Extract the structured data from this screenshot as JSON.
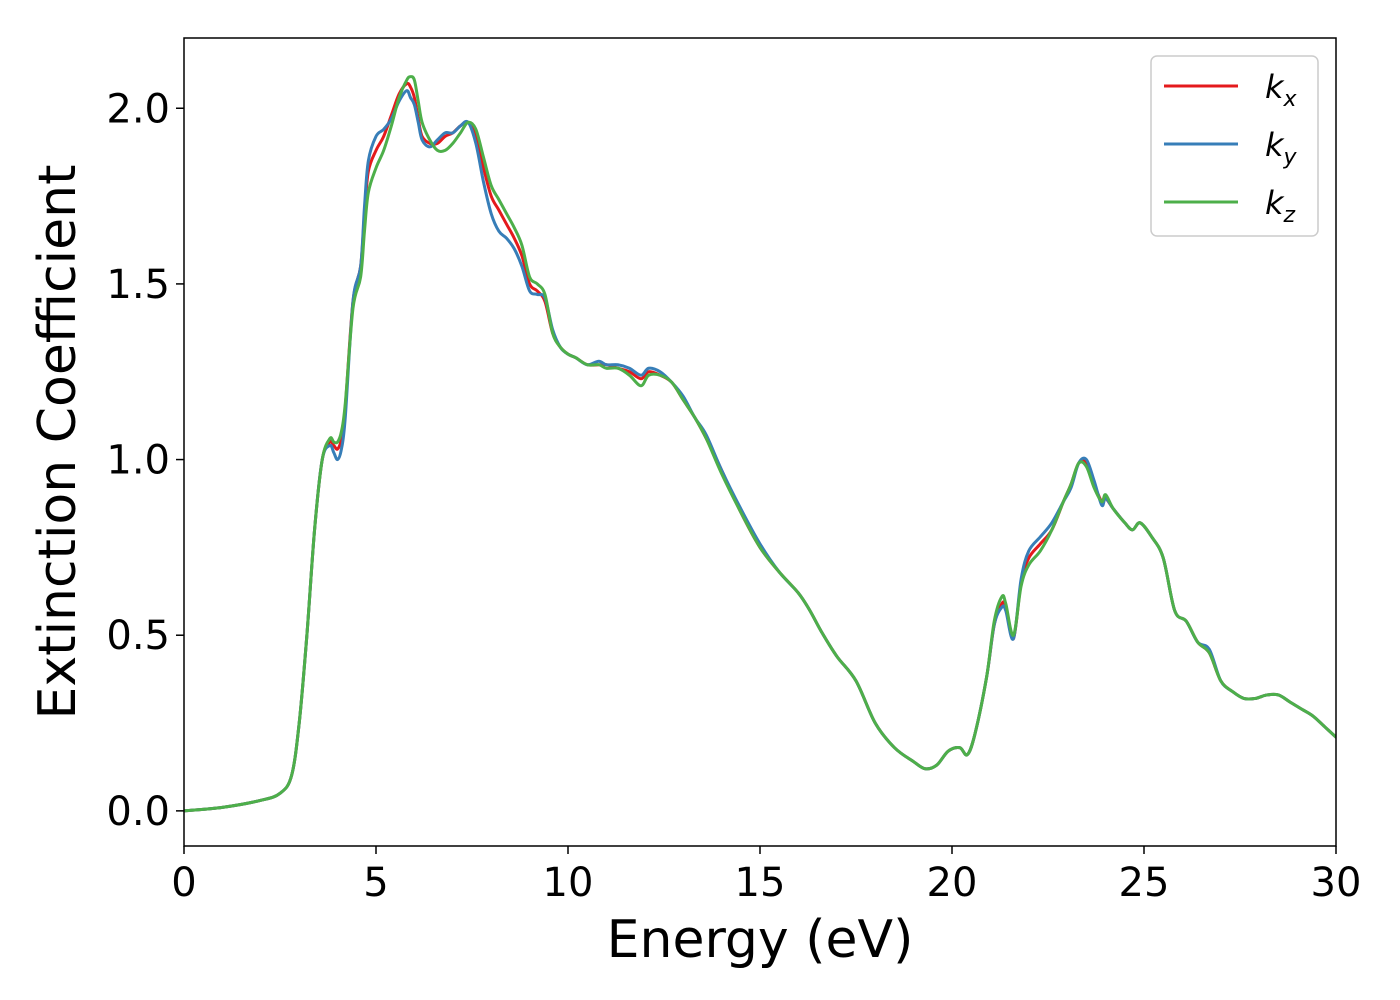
{
  "chart_data": {
    "type": "line",
    "title": "",
    "xlabel": "Energy (eV)",
    "ylabel": "Extinction Coefficient",
    "xlim": [
      0,
      30
    ],
    "ylim": [
      -0.1,
      2.2
    ],
    "xticks": [
      0,
      5,
      10,
      15,
      20,
      25,
      30
    ],
    "xtick_labels": [
      "0",
      "5",
      "10",
      "15",
      "20",
      "25",
      "30"
    ],
    "yticks": [
      0.0,
      0.5,
      1.0,
      1.5,
      2.0
    ],
    "ytick_labels": [
      "0.0",
      "0.5",
      "1.0",
      "1.5",
      "2.0"
    ],
    "grid": false,
    "legend_position": "top-right",
    "series": [
      {
        "name": "k",
        "subscript": "x",
        "color": "#e41a1c",
        "x": [
          0,
          1,
          2,
          2.5,
          2.8,
          3.0,
          3.2,
          3.4,
          3.6,
          3.8,
          3.9,
          4.0,
          4.1,
          4.2,
          4.4,
          4.6,
          4.7,
          4.8,
          5.0,
          5.2,
          5.4,
          5.6,
          5.8,
          5.9,
          6.0,
          6.1,
          6.2,
          6.4,
          6.6,
          6.8,
          7.0,
          7.2,
          7.4,
          7.6,
          7.8,
          8.0,
          8.2,
          8.4,
          8.6,
          8.8,
          9.0,
          9.2,
          9.4,
          9.6,
          9.8,
          10.0,
          10.2,
          10.5,
          10.8,
          11.0,
          11.3,
          11.6,
          11.9,
          12.1,
          12.4,
          12.7,
          13.0,
          13.3,
          13.6,
          14.0,
          14.5,
          15.0,
          15.5,
          16.0,
          16.3,
          16.6,
          17.0,
          17.5,
          18.0,
          18.5,
          19.0,
          19.3,
          19.6,
          19.9,
          20.2,
          20.4,
          20.6,
          20.9,
          21.1,
          21.3,
          21.4,
          21.6,
          21.8,
          22.0,
          22.3,
          22.6,
          22.9,
          23.1,
          23.3,
          23.5,
          23.7,
          23.9,
          24.0,
          24.2,
          24.5,
          24.7,
          24.9,
          25.2,
          25.5,
          25.8,
          26.1,
          26.4,
          26.7,
          27.0,
          27.3,
          27.6,
          27.9,
          28.2,
          28.5,
          28.8,
          29.1,
          29.4,
          29.7,
          30.0
        ],
        "values": [
          0.0,
          0.01,
          0.03,
          0.05,
          0.1,
          0.25,
          0.5,
          0.8,
          1.0,
          1.05,
          1.04,
          1.03,
          1.06,
          1.15,
          1.45,
          1.55,
          1.7,
          1.82,
          1.88,
          1.92,
          1.98,
          2.04,
          2.07,
          2.06,
          2.03,
          1.97,
          1.92,
          1.9,
          1.9,
          1.92,
          1.93,
          1.95,
          1.96,
          1.92,
          1.83,
          1.75,
          1.71,
          1.67,
          1.63,
          1.58,
          1.5,
          1.48,
          1.45,
          1.36,
          1.32,
          1.3,
          1.29,
          1.27,
          1.27,
          1.27,
          1.26,
          1.25,
          1.23,
          1.25,
          1.24,
          1.22,
          1.17,
          1.12,
          1.06,
          0.97,
          0.85,
          0.75,
          0.68,
          0.62,
          0.57,
          0.51,
          0.44,
          0.37,
          0.25,
          0.18,
          0.14,
          0.12,
          0.13,
          0.17,
          0.18,
          0.16,
          0.22,
          0.38,
          0.53,
          0.59,
          0.58,
          0.49,
          0.65,
          0.72,
          0.76,
          0.8,
          0.88,
          0.93,
          0.99,
          0.99,
          0.93,
          0.88,
          0.89,
          0.86,
          0.82,
          0.8,
          0.82,
          0.78,
          0.72,
          0.57,
          0.54,
          0.48,
          0.45,
          0.37,
          0.34,
          0.32,
          0.32,
          0.33,
          0.33,
          0.31,
          0.29,
          0.27,
          0.24,
          0.21
        ]
      },
      {
        "name": "k",
        "subscript": "y",
        "color": "#377eb8",
        "x": [
          0,
          1,
          2,
          2.5,
          2.8,
          3.0,
          3.2,
          3.4,
          3.6,
          3.8,
          3.9,
          4.0,
          4.1,
          4.2,
          4.4,
          4.6,
          4.7,
          4.8,
          5.0,
          5.2,
          5.4,
          5.6,
          5.8,
          5.9,
          6.0,
          6.1,
          6.2,
          6.4,
          6.6,
          6.8,
          7.0,
          7.2,
          7.4,
          7.6,
          7.8,
          8.0,
          8.2,
          8.4,
          8.6,
          8.8,
          9.0,
          9.2,
          9.4,
          9.6,
          9.8,
          10.0,
          10.2,
          10.5,
          10.8,
          11.0,
          11.3,
          11.6,
          11.9,
          12.1,
          12.4,
          12.7,
          13.0,
          13.3,
          13.6,
          14.0,
          14.5,
          15.0,
          15.5,
          16.0,
          16.3,
          16.6,
          17.0,
          17.5,
          18.0,
          18.5,
          19.0,
          19.3,
          19.6,
          19.9,
          20.2,
          20.4,
          20.6,
          20.9,
          21.1,
          21.3,
          21.4,
          21.6,
          21.8,
          22.0,
          22.3,
          22.6,
          22.9,
          23.1,
          23.3,
          23.5,
          23.7,
          23.9,
          24.0,
          24.2,
          24.5,
          24.7,
          24.9,
          25.2,
          25.5,
          25.8,
          26.1,
          26.4,
          26.7,
          27.0,
          27.3,
          27.6,
          27.9,
          28.2,
          28.5,
          28.8,
          29.1,
          29.4,
          29.7,
          30.0
        ],
        "values": [
          0.0,
          0.01,
          0.03,
          0.05,
          0.1,
          0.25,
          0.5,
          0.8,
          1.0,
          1.04,
          1.02,
          1.0,
          1.03,
          1.12,
          1.45,
          1.55,
          1.72,
          1.85,
          1.92,
          1.94,
          1.97,
          2.02,
          2.05,
          2.03,
          2.01,
          1.96,
          1.91,
          1.89,
          1.91,
          1.93,
          1.93,
          1.95,
          1.96,
          1.9,
          1.79,
          1.7,
          1.65,
          1.63,
          1.6,
          1.55,
          1.48,
          1.47,
          1.46,
          1.37,
          1.32,
          1.3,
          1.29,
          1.27,
          1.28,
          1.27,
          1.27,
          1.26,
          1.24,
          1.26,
          1.25,
          1.22,
          1.18,
          1.12,
          1.07,
          0.97,
          0.86,
          0.76,
          0.68,
          0.62,
          0.57,
          0.51,
          0.44,
          0.37,
          0.25,
          0.18,
          0.14,
          0.12,
          0.13,
          0.17,
          0.18,
          0.16,
          0.22,
          0.38,
          0.53,
          0.58,
          0.57,
          0.49,
          0.66,
          0.74,
          0.78,
          0.82,
          0.88,
          0.92,
          0.99,
          1.0,
          0.94,
          0.87,
          0.89,
          0.86,
          0.82,
          0.8,
          0.82,
          0.78,
          0.72,
          0.57,
          0.54,
          0.48,
          0.46,
          0.37,
          0.34,
          0.32,
          0.32,
          0.33,
          0.33,
          0.31,
          0.29,
          0.27,
          0.24,
          0.21
        ]
      },
      {
        "name": "k",
        "subscript": "z",
        "color": "#4daf4a",
        "x": [
          0,
          1,
          2,
          2.5,
          2.8,
          3.0,
          3.2,
          3.4,
          3.6,
          3.8,
          3.9,
          4.0,
          4.1,
          4.2,
          4.4,
          4.6,
          4.7,
          4.8,
          5.0,
          5.2,
          5.4,
          5.6,
          5.8,
          5.9,
          6.0,
          6.1,
          6.2,
          6.4,
          6.6,
          6.8,
          7.0,
          7.2,
          7.4,
          7.6,
          7.8,
          8.0,
          8.2,
          8.4,
          8.6,
          8.8,
          9.0,
          9.2,
          9.4,
          9.6,
          9.8,
          10.0,
          10.2,
          10.5,
          10.8,
          11.0,
          11.3,
          11.6,
          11.9,
          12.1,
          12.4,
          12.7,
          13.0,
          13.3,
          13.6,
          14.0,
          14.5,
          15.0,
          15.5,
          16.0,
          16.3,
          16.6,
          17.0,
          17.5,
          18.0,
          18.5,
          19.0,
          19.3,
          19.6,
          19.9,
          20.2,
          20.4,
          20.6,
          20.9,
          21.1,
          21.3,
          21.4,
          21.6,
          21.8,
          22.0,
          22.3,
          22.6,
          22.9,
          23.1,
          23.3,
          23.5,
          23.7,
          23.9,
          24.0,
          24.2,
          24.5,
          24.7,
          24.9,
          25.2,
          25.5,
          25.8,
          26.1,
          26.4,
          26.7,
          27.0,
          27.3,
          27.6,
          27.9,
          28.2,
          28.5,
          28.8,
          29.1,
          29.4,
          29.7,
          30.0
        ],
        "values": [
          0.0,
          0.01,
          0.03,
          0.05,
          0.1,
          0.25,
          0.5,
          0.8,
          1.0,
          1.06,
          1.05,
          1.05,
          1.08,
          1.16,
          1.43,
          1.52,
          1.65,
          1.76,
          1.83,
          1.88,
          1.95,
          2.03,
          2.08,
          2.09,
          2.08,
          2.02,
          1.96,
          1.91,
          1.88,
          1.88,
          1.9,
          1.93,
          1.96,
          1.94,
          1.86,
          1.78,
          1.74,
          1.7,
          1.66,
          1.61,
          1.52,
          1.5,
          1.47,
          1.36,
          1.32,
          1.3,
          1.29,
          1.27,
          1.27,
          1.26,
          1.26,
          1.24,
          1.21,
          1.24,
          1.24,
          1.22,
          1.17,
          1.12,
          1.06,
          0.96,
          0.85,
          0.75,
          0.68,
          0.62,
          0.57,
          0.51,
          0.44,
          0.37,
          0.25,
          0.18,
          0.14,
          0.12,
          0.13,
          0.17,
          0.18,
          0.16,
          0.22,
          0.38,
          0.54,
          0.61,
          0.59,
          0.5,
          0.64,
          0.7,
          0.74,
          0.8,
          0.88,
          0.93,
          0.99,
          0.98,
          0.92,
          0.88,
          0.9,
          0.86,
          0.82,
          0.8,
          0.82,
          0.78,
          0.72,
          0.57,
          0.54,
          0.48,
          0.45,
          0.37,
          0.34,
          0.32,
          0.32,
          0.33,
          0.33,
          0.31,
          0.29,
          0.27,
          0.24,
          0.21
        ]
      }
    ]
  }
}
